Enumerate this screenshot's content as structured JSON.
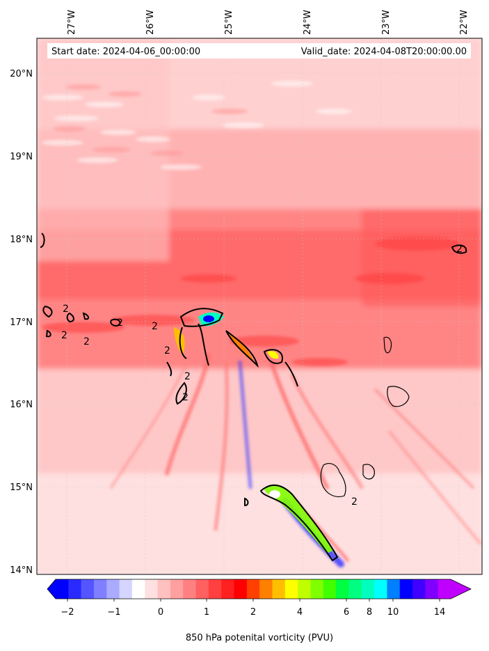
{
  "header": {
    "start_label": "Start date: 2024-04-06_00:00:00",
    "valid_label": "Valid_date: 2024-04-08T20:00:00.00"
  },
  "map": {
    "lon_labels": [
      "27°W",
      "26°W",
      "25°W",
      "24°W",
      "23°W",
      "22°W"
    ],
    "lat_labels": [
      "20°N",
      "19°N",
      "18°N",
      "17°N",
      "16°N",
      "15°N",
      "14°N"
    ],
    "contour_label": "2"
  },
  "colorbar": {
    "tick_labels": [
      "−2",
      "−1",
      "0",
      "1",
      "2",
      "4",
      "6",
      "8",
      "10",
      "14"
    ],
    "label": "850 hPa potenital vorticity (PVU)",
    "colors": [
      "#0000ff",
      "#2a2aff",
      "#5555ff",
      "#7f7fff",
      "#aaaaff",
      "#d5d5ff",
      "#ffffff",
      "#ffe0e0",
      "#ffc0c0",
      "#ffa0a0",
      "#ff8080",
      "#ff6060",
      "#ff4040",
      "#ff2020",
      "#ff0000",
      "#ff4000",
      "#ff8000",
      "#ffbf00",
      "#ffff00",
      "#c0ff00",
      "#80ff00",
      "#40ff00",
      "#00ff40",
      "#00ff80",
      "#00ffbf",
      "#00ffff",
      "#0080ff",
      "#0000ff",
      "#4000ff",
      "#8000ff",
      "#bf00ff"
    ]
  }
}
